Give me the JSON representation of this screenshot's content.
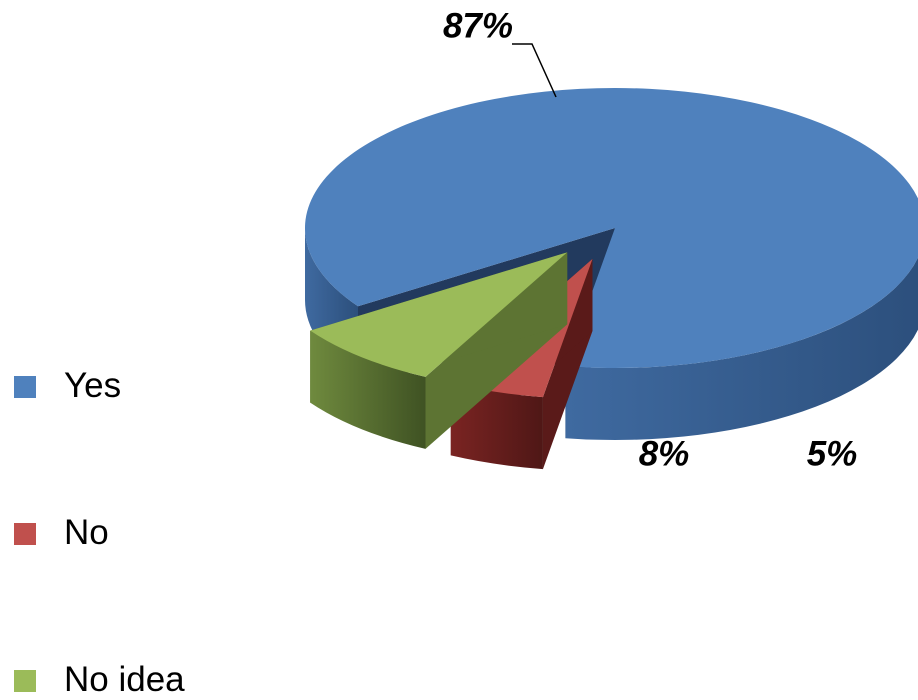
{
  "chart_data": {
    "type": "pie",
    "title": "",
    "categories": [
      "Yes",
      "No",
      "No idea"
    ],
    "values": [
      87,
      5,
      8
    ],
    "labels": [
      "87%",
      "5%",
      "8%"
    ],
    "colors": [
      "#4F81BD",
      "#C0504D",
      "#9BBB59"
    ],
    "legend_position": "left",
    "style": "3d-exploded"
  }
}
